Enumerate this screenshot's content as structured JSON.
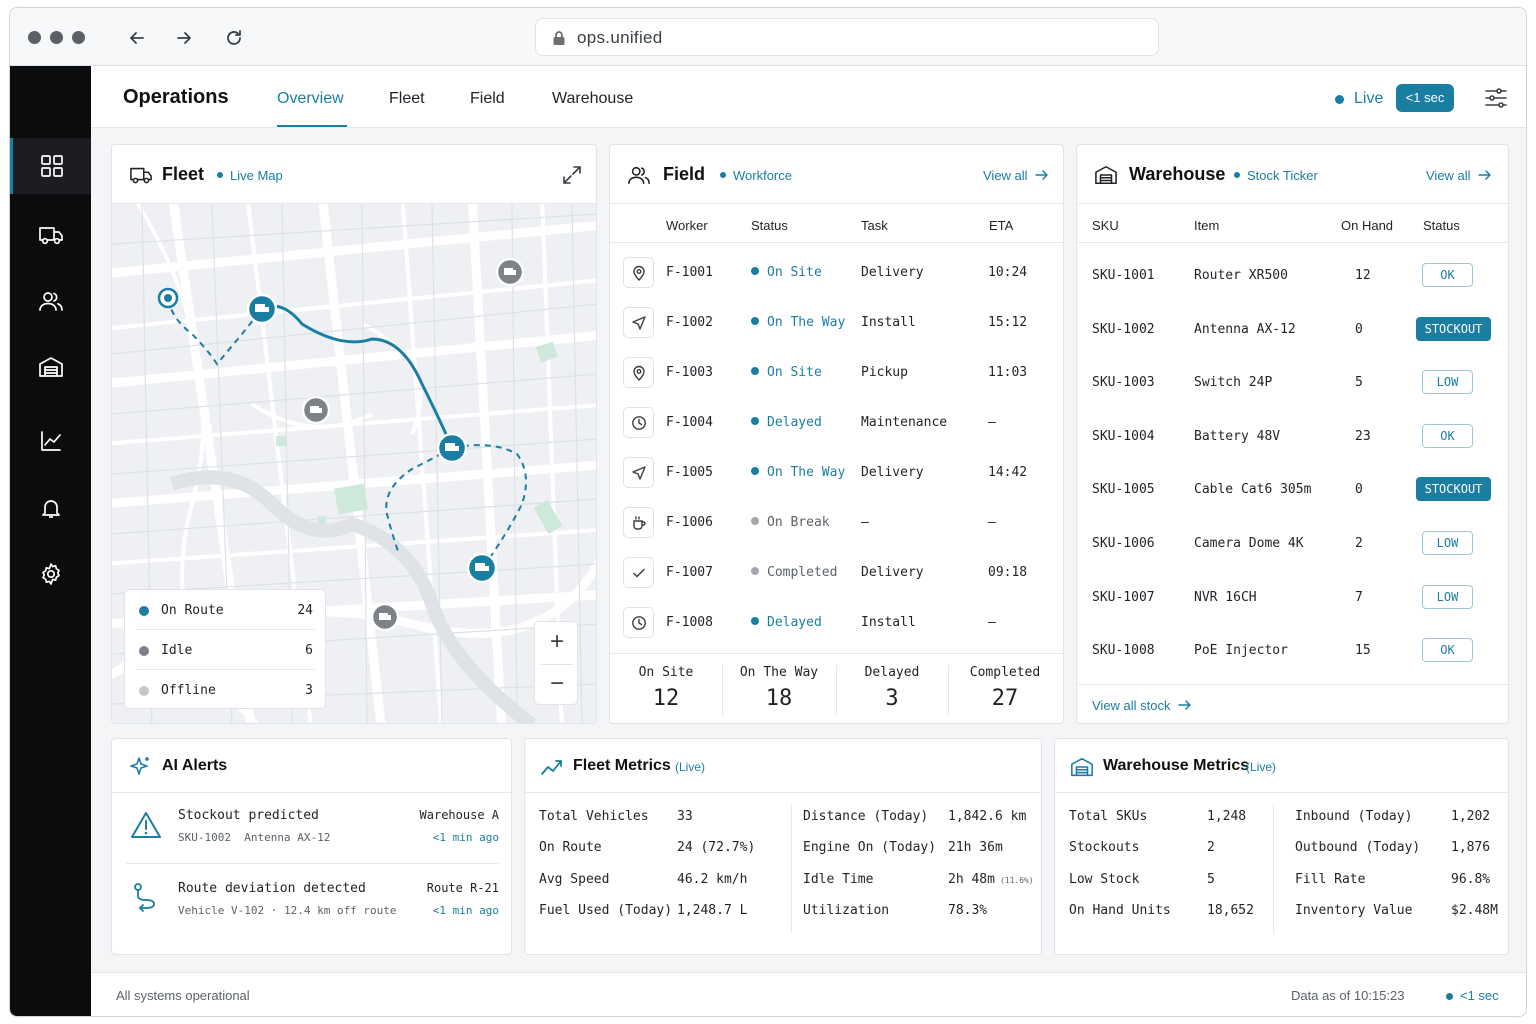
{
  "browser": {
    "url": "ops.unified"
  },
  "header": {
    "title": "Operations",
    "tabs": [
      {
        "label": "Overview",
        "active": true
      },
      {
        "label": "Fleet",
        "active": false
      },
      {
        "label": "Field",
        "active": false
      },
      {
        "label": "Warehouse",
        "active": false
      }
    ],
    "live_label": "Live",
    "latency": "<1 sec"
  },
  "sidebar": {
    "items": [
      {
        "icon": "grid-icon",
        "active": true
      },
      {
        "icon": "truck-icon",
        "active": false
      },
      {
        "icon": "users-icon",
        "active": false
      },
      {
        "icon": "warehouse-icon",
        "active": false
      },
      {
        "icon": "chart-icon",
        "active": false
      },
      {
        "icon": "bell-icon",
        "active": false
      },
      {
        "icon": "gear-icon",
        "active": false
      }
    ]
  },
  "fleet": {
    "title": "Fleet",
    "subtitle": "Live Map",
    "legend": [
      {
        "label": "On Route",
        "count": "24",
        "color": "#1a7ea3"
      },
      {
        "label": "Idle",
        "count": "6",
        "color": "#7d8188"
      },
      {
        "label": "Offline",
        "count": "3",
        "color": "#c4c7cc"
      }
    ],
    "zoom_in": "+",
    "zoom_out": "−"
  },
  "field": {
    "title": "Field",
    "subtitle": "Workforce",
    "view_all": "View all",
    "columns": [
      "Worker",
      "Status",
      "Task",
      "ETA"
    ],
    "rows": [
      {
        "icon": "pin-icon",
        "worker": "F-1001",
        "status": "On Site",
        "status_color": "#1a7ea3",
        "task": "Delivery",
        "eta": "10:24"
      },
      {
        "icon": "navigation-icon",
        "worker": "F-1002",
        "status": "On The Way",
        "status_color": "#1a7ea3",
        "task": "Install",
        "eta": "15:12"
      },
      {
        "icon": "pin-icon",
        "worker": "F-1003",
        "status": "On Site",
        "status_color": "#1a7ea3",
        "task": "Pickup",
        "eta": "11:03"
      },
      {
        "icon": "clock-icon",
        "worker": "F-1004",
        "status": "Delayed",
        "status_color": "#1a7ea3",
        "task": "Maintenance",
        "eta": "—"
      },
      {
        "icon": "navigation-icon",
        "worker": "F-1005",
        "status": "On The Way",
        "status_color": "#1a7ea3",
        "task": "Delivery",
        "eta": "14:42"
      },
      {
        "icon": "coffee-icon",
        "worker": "F-1006",
        "status": "On Break",
        "status_color": "#a4a8ae",
        "task": "—",
        "eta": "—"
      },
      {
        "icon": "check-icon",
        "worker": "F-1007",
        "status": "Completed",
        "status_color": "#a4a8ae",
        "task": "Delivery",
        "eta": "09:18"
      },
      {
        "icon": "clock-icon",
        "worker": "F-1008",
        "status": "Delayed",
        "status_color": "#1a7ea3",
        "task": "Install",
        "eta": "—"
      }
    ],
    "summary": [
      {
        "label": "On Site",
        "value": "12"
      },
      {
        "label": "On The Way",
        "value": "18"
      },
      {
        "label": "Delayed",
        "value": "3"
      },
      {
        "label": "Completed",
        "value": "27"
      }
    ]
  },
  "warehouse": {
    "title": "Warehouse",
    "subtitle": "Stock Ticker",
    "view_all": "View all",
    "columns": [
      "SKU",
      "Item",
      "On Hand",
      "Status"
    ],
    "rows": [
      {
        "sku": "SKU-1001",
        "item": "Router XR500",
        "on_hand": "12",
        "status": "OK",
        "kind": "ok"
      },
      {
        "sku": "SKU-1002",
        "item": "Antenna AX-12",
        "on_hand": "0",
        "status": "STOCKOUT",
        "kind": "so"
      },
      {
        "sku": "SKU-1003",
        "item": "Switch 24P",
        "on_hand": "5",
        "status": "LOW",
        "kind": "low"
      },
      {
        "sku": "SKU-1004",
        "item": "Battery 48V",
        "on_hand": "23",
        "status": "OK",
        "kind": "ok"
      },
      {
        "sku": "SKU-1005",
        "item": "Cable Cat6 305m",
        "on_hand": "0",
        "status": "STOCKOUT",
        "kind": "so"
      },
      {
        "sku": "SKU-1006",
        "item": "Camera Dome 4K",
        "on_hand": "2",
        "status": "LOW",
        "kind": "low"
      },
      {
        "sku": "SKU-1007",
        "item": "NVR 16CH",
        "on_hand": "7",
        "status": "LOW",
        "kind": "low"
      },
      {
        "sku": "SKU-1008",
        "item": "PoE Injector",
        "on_hand": "15",
        "status": "OK",
        "kind": "ok"
      }
    ],
    "view_all_stock": "View all stock"
  },
  "alerts": {
    "title": "AI Alerts",
    "items": [
      {
        "icon": "warning-icon",
        "title": "Stockout predicted",
        "detail": "SKU-1002  Antenna AX-12",
        "source": "Warehouse A",
        "time": "<1 min ago"
      },
      {
        "icon": "route-icon",
        "title": "Route deviation detected",
        "detail": "Vehicle V-102 · 12.4 km off route",
        "source": "Route R-21",
        "time": "<1 min ago"
      }
    ]
  },
  "fleet_metrics": {
    "title": "Fleet Metrics",
    "live": "(Live)",
    "left": [
      {
        "label": "Total Vehicles",
        "value": "33"
      },
      {
        "label": "On Route",
        "value": "24 (72.7%)"
      },
      {
        "label": "Avg Speed",
        "value": "46.2 km/h"
      },
      {
        "label": "Fuel Used (Today)",
        "value": "1,248.7 L"
      }
    ],
    "right": [
      {
        "label": "Distance (Today)",
        "value": "1,842.6 km",
        "note": ""
      },
      {
        "label": "Engine On (Today)",
        "value": "21h 36m",
        "note": ""
      },
      {
        "label": "Idle Time",
        "value": "2h 48m",
        "note": "(11.6%)"
      },
      {
        "label": "Utilization",
        "value": "78.3%",
        "note": ""
      }
    ]
  },
  "warehouse_metrics": {
    "title": "Warehouse Metrics",
    "live": "(Live)",
    "left": [
      {
        "label": "Total SKUs",
        "value": "1,248"
      },
      {
        "label": "Stockouts",
        "value": "2"
      },
      {
        "label": "Low Stock",
        "value": "5"
      },
      {
        "label": "On Hand Units",
        "value": "18,652"
      }
    ],
    "right": [
      {
        "label": "Inbound (Today)",
        "value": "1,202"
      },
      {
        "label": "Outbound (Today)",
        "value": "1,876"
      },
      {
        "label": "Fill Rate",
        "value": "96.8%"
      },
      {
        "label": "Inventory Value",
        "value": "$2.48M"
      }
    ]
  },
  "footer": {
    "status": "All systems operational",
    "data_as_of": "Data as of 10:15:23",
    "latency": "<1 sec"
  },
  "colors": {
    "accent": "#1a7ea3",
    "sidebar": "#0b0c0e",
    "idle": "#7d8188",
    "offline": "#c4c7cc"
  }
}
